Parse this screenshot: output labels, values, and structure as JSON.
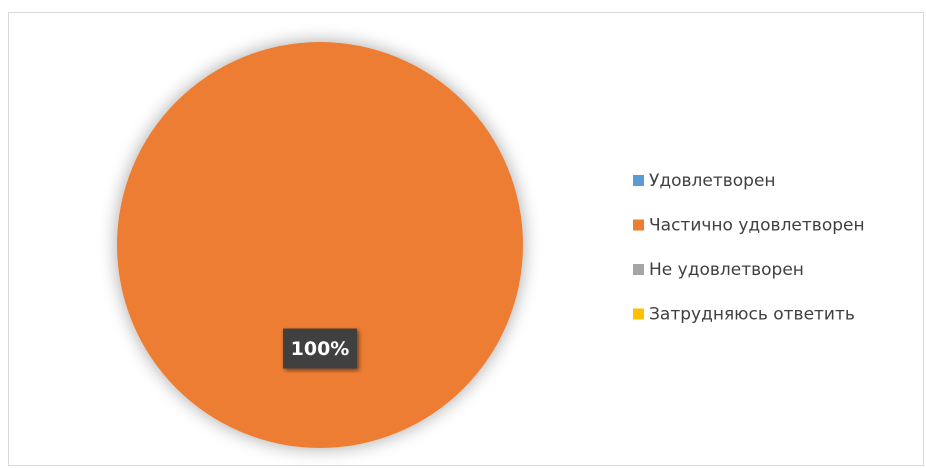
{
  "chart_data": {
    "type": "pie",
    "categories": [
      "Удовлетворен",
      "Частично удовлетворен",
      "Не удовлетворен",
      "Затрудняюсь ответить"
    ],
    "values": [
      0,
      100,
      0,
      0
    ],
    "value_labels": [
      null,
      "100%",
      null,
      null
    ],
    "colors": [
      "#5b9bd5",
      "#ed7d31",
      "#a5a5a5",
      "#ffc000"
    ],
    "legend": "right"
  }
}
